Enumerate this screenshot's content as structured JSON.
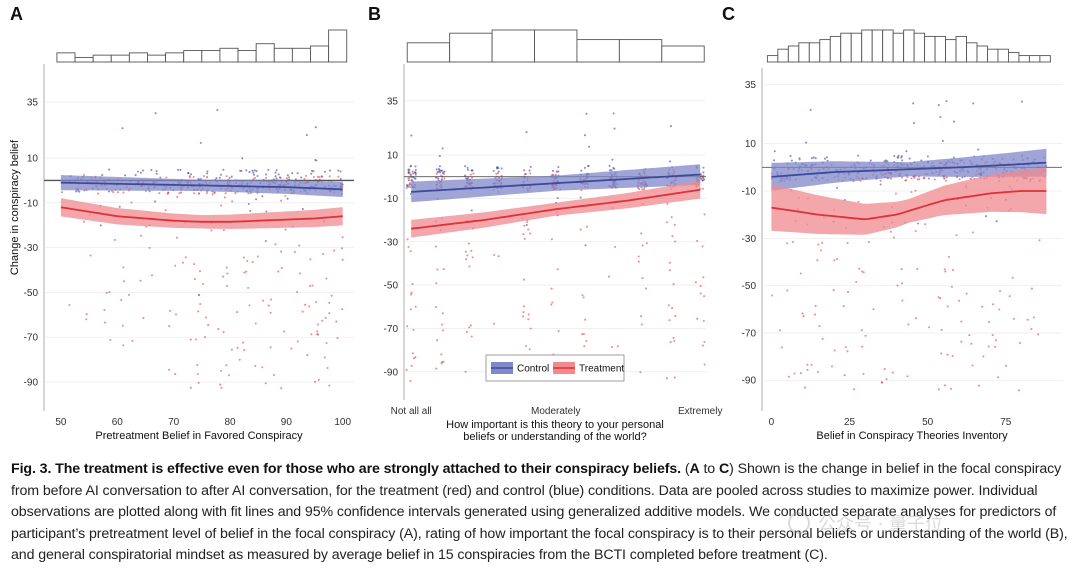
{
  "figure": {
    "colors": {
      "control": "#3d4a9c",
      "control_band": "#7f88c9",
      "treatment": "#e0303a",
      "treatment_band": "#f08a8f",
      "reference": "#555555",
      "grid": "#e6e6e6"
    },
    "legend": {
      "control": "Control",
      "treatment": "Treatment"
    },
    "panels": [
      {
        "letter": "A",
        "ylabel": "Change in conspiracy belief",
        "xlabel": [
          "Pretreatment Belief in Favored Conspiracy"
        ],
        "xlim": [
          47,
          102
        ],
        "ylim": [
          -103,
          52
        ],
        "xticks": [
          50,
          60,
          70,
          80,
          90,
          100
        ],
        "xtick_labels": [
          "50",
          "60",
          "70",
          "80",
          "90",
          "100"
        ],
        "yticks": [
          35,
          10,
          -10,
          -30,
          -50,
          -70,
          -90
        ],
        "hist_counts": [
          4,
          2,
          3,
          3,
          4,
          3,
          4,
          5,
          5,
          6,
          5,
          8,
          6,
          6,
          7,
          14
        ],
        "control_fit": {
          "x": [
            50,
            60,
            70,
            80,
            90,
            100
          ],
          "y": [
            -1,
            -1.5,
            -2,
            -2.5,
            -3,
            -4
          ],
          "band": 2.5
        },
        "treatment_fit": {
          "x": [
            50,
            55,
            60,
            65,
            70,
            75,
            80,
            85,
            90,
            95,
            100
          ],
          "y": [
            -12,
            -14,
            -16,
            -17,
            -18,
            -18.5,
            -18.5,
            -18,
            -17.5,
            -17,
            -16
          ],
          "band": 3
        },
        "dot_seed": 11,
        "dot_xrange": [
          50,
          100
        ],
        "dot_discrete": false
      },
      {
        "letter": "B",
        "ylabel": "",
        "xlabel": [
          "How important is this theory to your personal",
          "beliefs or understanding of the world?"
        ],
        "xlim": [
          -2.5,
          102
        ],
        "ylim": [
          -103,
          52
        ],
        "xticks": [
          0,
          50,
          100
        ],
        "xtick_labels": [
          "Not all all",
          "Moderately",
          "Extremely"
        ],
        "yticks": [
          35,
          10,
          -10,
          -30,
          -50,
          -70,
          -90
        ],
        "hist_counts": [
          6,
          9,
          10,
          10,
          7,
          7,
          5
        ],
        "control_fit": {
          "x": [
            0,
            25,
            50,
            75,
            100
          ],
          "y": [
            -7,
            -5,
            -3,
            -1,
            1
          ],
          "band": 3.5
        },
        "treatment_fit": {
          "x": [
            0,
            25,
            50,
            75,
            100
          ],
          "y": [
            -24,
            -20,
            -15,
            -11,
            -6
          ],
          "band": 3
        },
        "dot_seed": 23,
        "dot_xrange": [
          0,
          100
        ],
        "dot_discrete": true
      },
      {
        "letter": "C",
        "ylabel": "",
        "xlabel": [
          "Belief in Conspiracy Theories Inventory"
        ],
        "xlim": [
          -3,
          93
        ],
        "ylim": [
          -103,
          42
        ],
        "xticks": [
          0,
          25,
          50,
          75
        ],
        "xtick_labels": [
          "0",
          "25",
          "50",
          "75"
        ],
        "yticks": [
          35,
          10,
          -10,
          -30,
          -50,
          -70,
          -90
        ],
        "hist_counts": [
          2,
          4,
          5,
          6,
          6,
          7,
          8,
          9,
          9,
          10,
          10,
          10,
          9,
          10,
          9,
          8,
          8,
          7,
          8,
          6,
          5,
          4,
          4,
          3,
          2,
          2,
          2
        ],
        "control_fit": {
          "x": [
            0,
            20,
            40,
            60,
            75,
            88
          ],
          "y": [
            -4,
            -2,
            -1,
            0,
            1,
            2
          ],
          "band": 3
        },
        "treatment_fit": {
          "x": [
            0,
            15,
            30,
            40,
            55,
            70,
            80,
            88
          ],
          "y": [
            -17,
            -20,
            -22,
            -20,
            -14,
            -11,
            -10,
            -10
          ],
          "band": 5
        },
        "dot_seed": 37,
        "dot_xrange": [
          0,
          88
        ],
        "dot_discrete": false
      }
    ]
  },
  "caption": {
    "bold": "Fig. 3. The treatment is effective even for those who are strongly attached to their conspiracy beliefs.",
    "part1": " (",
    "A": "A",
    "to": " to ",
    "C": "C",
    "rest": ") Shown is the change in belief in the focal conspiracy from before AI conversation to after AI conversation, for the treatment (red) and control (blue) conditions. Data are pooled across studies to maximize power. Individual observations are plotted along with fit lines and 95% confidence intervals generated using generalized additive models. We conducted separate analyses for predictors of participant’s pretreatment level of belief in the focal conspiracy (A), rating of how important the focal conspiracy is to their personal beliefs or understanding of the world (B), and general conspiratorial mindset as measured by average belief in 15 conspiracies from the BCTI completed before treatment (C)."
  },
  "watermark": {
    "text": "公众号 · 量子位"
  }
}
